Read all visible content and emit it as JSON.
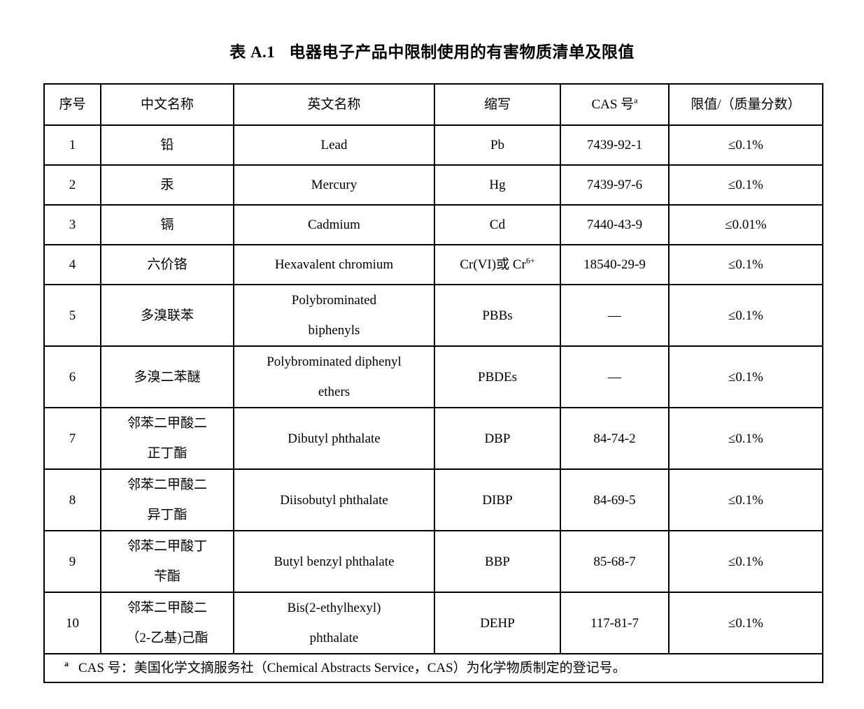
{
  "title": {
    "label": "表 A.1",
    "text": "电器电子产品中限制使用的有害物质清单及限值"
  },
  "table": {
    "headers": {
      "index": "序号",
      "cn": "中文名称",
      "en": "英文名称",
      "abbr": "缩写",
      "cas": {
        "text": "CAS 号",
        "sup": "a"
      },
      "limit": "限值/（质量分数）"
    },
    "rows": [
      {
        "index": "1",
        "cn": "铅",
        "en": "Lead",
        "abbr": "Pb",
        "cas": "7439-92-1",
        "limit": "≤0.1%"
      },
      {
        "index": "2",
        "cn": "汞",
        "en": "Mercury",
        "abbr": "Hg",
        "cas": "7439-97-6",
        "limit": "≤0.1%"
      },
      {
        "index": "3",
        "cn": "镉",
        "en": "Cadmium",
        "abbr": "Cd",
        "cas": "7440-43-9",
        "limit": "≤0.01%"
      },
      {
        "index": "4",
        "cn": "六价铬",
        "en": "Hexavalent chromium",
        "abbr": {
          "text": "Cr(VI)或 Cr",
          "sup": "6+"
        },
        "cas": "18540-29-9",
        "limit": "≤0.1%"
      },
      {
        "index": "5",
        "cn": "多溴联苯",
        "en": [
          "Polybrominated",
          "biphenyls"
        ],
        "abbr": "PBBs",
        "cas": "—",
        "limit": "≤0.1%"
      },
      {
        "index": "6",
        "cn": "多溴二苯醚",
        "en": [
          "Polybrominated diphenyl",
          "ethers"
        ],
        "abbr": "PBDEs",
        "cas": "—",
        "limit": "≤0.1%"
      },
      {
        "index": "7",
        "cn": [
          "邻苯二甲酸二",
          "正丁酯"
        ],
        "en": "Dibutyl phthalate",
        "abbr": "DBP",
        "cas": "84-74-2",
        "limit": "≤0.1%"
      },
      {
        "index": "8",
        "cn": [
          "邻苯二甲酸二",
          "异丁酯"
        ],
        "en": "Diisobutyl phthalate",
        "abbr": "DIBP",
        "cas": "84-69-5",
        "limit": "≤0.1%"
      },
      {
        "index": "9",
        "cn": [
          "邻苯二甲酸丁",
          "苄酯"
        ],
        "en": "Butyl benzyl phthalate",
        "abbr": "BBP",
        "cas": "85-68-7",
        "limit": "≤0.1%"
      },
      {
        "index": "10",
        "cn": [
          "邻苯二甲酸二",
          "（2-乙基)己酯"
        ],
        "en": [
          "Bis(2-ethylhexyl)",
          "phthalate"
        ],
        "abbr": "DEHP",
        "cas": "117-81-7",
        "limit": "≤0.1%"
      }
    ],
    "footnote": {
      "sup": "a",
      "text": "CAS 号：美国化学文摘服务社（Chemical Abstracts Service，CAS）为化学物质制定的登记号。"
    }
  }
}
